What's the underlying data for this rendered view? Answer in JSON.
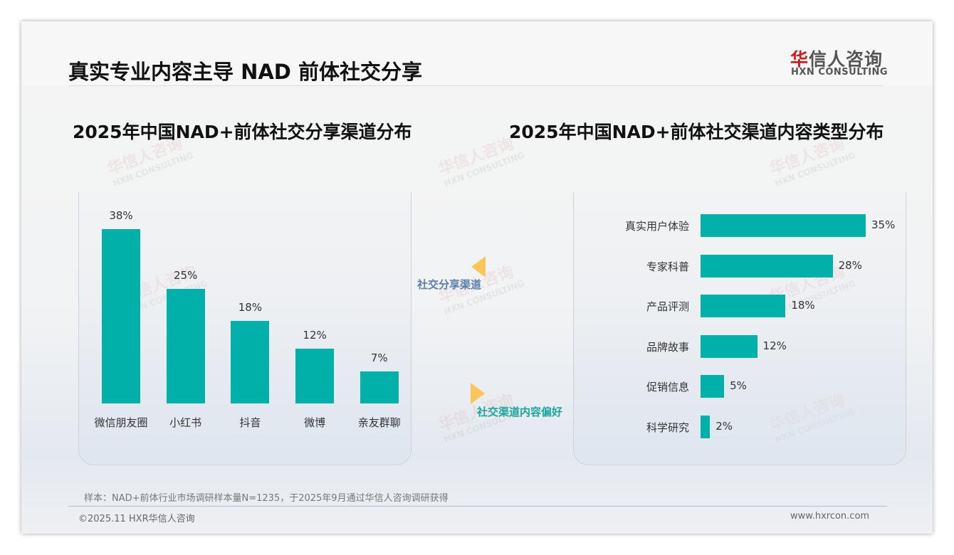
{
  "header": {
    "title": "真实专业内容主导 NAD 前体社交分享",
    "logo_cn_red": "华",
    "logo_cn_rest": "信人咨询",
    "logo_en": "HXN CONSULTING"
  },
  "watermark": {
    "cn": "华信人咨询",
    "en": "HXN CONSULTING"
  },
  "connector": {
    "left_label": "社交分享渠道",
    "right_label": "社交渠道内容偏好",
    "arrow_color": "#fbc55a"
  },
  "colors": {
    "bar": "#00b0a9"
  },
  "chart_data": [
    {
      "type": "bar",
      "title": "2025年中国NAD+前体社交分享渠道分布",
      "categories": [
        "微信朋友圈",
        "小红书",
        "抖音",
        "微博",
        "亲友群聊"
      ],
      "values": [
        38,
        25,
        18,
        12,
        7
      ],
      "labels": [
        "38%",
        "25%",
        "18%",
        "12%",
        "7%"
      ],
      "ylim": [
        0,
        38
      ],
      "orientation": "vertical",
      "grid": false
    },
    {
      "type": "bar",
      "title": "2025年中国NAD+前体社交渠道内容类型分布",
      "categories": [
        "真实用户体验",
        "专家科普",
        "产品评测",
        "品牌故事",
        "促销信息",
        "科学研究"
      ],
      "values": [
        35,
        28,
        18,
        12,
        5,
        2
      ],
      "labels": [
        "35%",
        "28%",
        "18%",
        "12%",
        "5%",
        "2%"
      ],
      "xlim": [
        0,
        35
      ],
      "orientation": "horizontal",
      "grid": false
    }
  ],
  "footer": {
    "note": "样本：NAD+前体行业市场调研样本量N=1235，于2025年9月通过华信人咨询调研获得",
    "copyright": "©2025.11 HXR华信人咨询",
    "url": "www.hxrcon.com"
  }
}
